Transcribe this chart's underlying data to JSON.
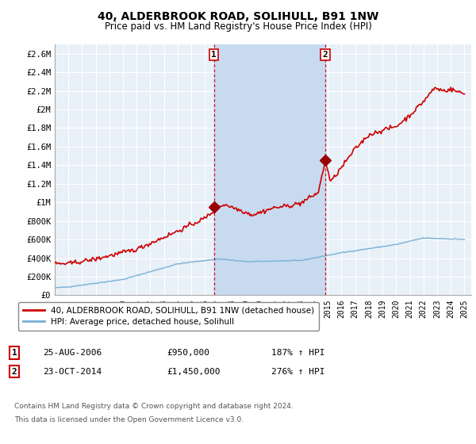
{
  "title": "40, ALDERBROOK ROAD, SOLIHULL, B91 1NW",
  "subtitle": "Price paid vs. HM Land Registry's House Price Index (HPI)",
  "title_fontsize": 10,
  "subtitle_fontsize": 8.5,
  "background_color": "#ffffff",
  "plot_bg_color": "#e8f0f8",
  "shade_color": "#c8daf0",
  "grid_color": "#ffffff",
  "hpi_line_color": "#7ab0d4",
  "price_line_color": "#cc0000",
  "dashed_line_color": "#cc0000",
  "marker_color": "#990000",
  "ylim": [
    0,
    2700000
  ],
  "yticks": [
    0,
    200000,
    400000,
    600000,
    800000,
    1000000,
    1200000,
    1400000,
    1600000,
    1800000,
    2000000,
    2200000,
    2400000,
    2600000
  ],
  "ytick_labels": [
    "£0",
    "£200K",
    "£400K",
    "£600K",
    "£800K",
    "£1M",
    "£1.2M",
    "£1.4M",
    "£1.6M",
    "£1.8M",
    "£2M",
    "£2.2M",
    "£2.4M",
    "£2.6M"
  ],
  "sale1_year": 2006.65,
  "sale1_price": 950000,
  "sale1_label": "1",
  "sale1_date": "25-AUG-2006",
  "sale1_hpi_pct": "187%",
  "sale2_year": 2014.81,
  "sale2_price": 1450000,
  "sale2_label": "2",
  "sale2_date": "23-OCT-2014",
  "sale2_hpi_pct": "276%",
  "legend_property": "40, ALDERBROOK ROAD, SOLIHULL, B91 1NW (detached house)",
  "legend_hpi": "HPI: Average price, detached house, Solihull",
  "footer1": "Contains HM Land Registry data © Crown copyright and database right 2024.",
  "footer2": "This data is licensed under the Open Government Licence v3.0.",
  "xmin": 1995,
  "xmax": 2025.5
}
